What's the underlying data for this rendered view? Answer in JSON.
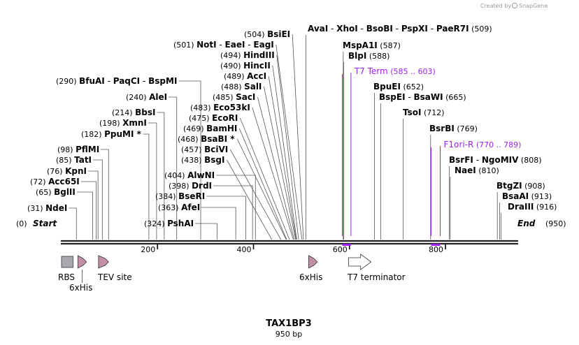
{
  "map": {
    "name": "TAX1BP3",
    "length_label": "950 bp",
    "length": 950,
    "credit": "Created by",
    "brand": "SnapGene"
  },
  "ticks": [
    {
      "pos": 200,
      "label": "200"
    },
    {
      "pos": 400,
      "label": "400"
    },
    {
      "pos": 600,
      "label": "600"
    },
    {
      "pos": 800,
      "label": "800"
    }
  ],
  "ends": [
    {
      "id": "start",
      "num": "(0)",
      "name": "Start"
    },
    {
      "id": "end",
      "name": "End",
      "num": "(950)"
    }
  ],
  "enzymes": [
    {
      "id": "ndei",
      "pos": 31,
      "num": "(31)",
      "names": [
        "NdeI"
      ]
    },
    {
      "id": "bglii",
      "pos": 65,
      "num": "(65)",
      "names": [
        "BglII"
      ]
    },
    {
      "id": "acc65i",
      "pos": 72,
      "num": "(72)",
      "names": [
        "Acc65I"
      ]
    },
    {
      "id": "kpni",
      "pos": 76,
      "num": "(76)",
      "names": [
        "KpnI"
      ]
    },
    {
      "id": "tati",
      "pos": 85,
      "num": "(85)",
      "names": [
        "TatI"
      ]
    },
    {
      "id": "pflmi",
      "pos": 98,
      "num": "(98)",
      "names": [
        "PflMI"
      ]
    },
    {
      "id": "ppumi",
      "pos": 182,
      "num": "(182)",
      "names": [
        "PpuMI *"
      ]
    },
    {
      "id": "xmni",
      "pos": 198,
      "num": "(198)",
      "names": [
        "XmnI"
      ]
    },
    {
      "id": "bbsi",
      "pos": 214,
      "num": "(214)",
      "names": [
        "BbsI"
      ]
    },
    {
      "id": "alei",
      "pos": 240,
      "num": "(240)",
      "names": [
        "AleI"
      ]
    },
    {
      "id": "bfuai",
      "pos": 290,
      "num": "(290)",
      "names": [
        "BfuAI",
        "PaqCI",
        "BspMI"
      ]
    },
    {
      "id": "pshai",
      "pos": 324,
      "num": "(324)",
      "names": [
        "PshAI"
      ]
    },
    {
      "id": "afei",
      "pos": 363,
      "num": "(363)",
      "names": [
        "AfeI"
      ]
    },
    {
      "id": "bseri",
      "pos": 384,
      "num": "(384)",
      "names": [
        "BseRI"
      ]
    },
    {
      "id": "drdi",
      "pos": 398,
      "num": "(398)",
      "names": [
        "DrdI"
      ]
    },
    {
      "id": "alwni",
      "pos": 404,
      "num": "(404)",
      "names": [
        "AlwNI"
      ]
    },
    {
      "id": "bsgi",
      "pos": 438,
      "num": "(438)",
      "names": [
        "BsgI"
      ]
    },
    {
      "id": "bcivi",
      "pos": 457,
      "num": "(457)",
      "names": [
        "BciVI"
      ]
    },
    {
      "id": "bsabi",
      "pos": 468,
      "num": "(468)",
      "names": [
        "BsaBI *"
      ]
    },
    {
      "id": "bamhi",
      "pos": 469,
      "num": "(469)",
      "names": [
        "BamHI"
      ]
    },
    {
      "id": "ecori",
      "pos": 475,
      "num": "(475)",
      "names": [
        "EcoRI"
      ]
    },
    {
      "id": "eco53ki",
      "pos": 483,
      "num": "(483)",
      "names": [
        "Eco53kI"
      ]
    },
    {
      "id": "saci",
      "pos": 485,
      "num": "(485)",
      "names": [
        "SacI"
      ]
    },
    {
      "id": "sali",
      "pos": 488,
      "num": "(488)",
      "names": [
        "SalI"
      ]
    },
    {
      "id": "acci",
      "pos": 489,
      "num": "(489)",
      "names": [
        "AccI"
      ]
    },
    {
      "id": "hincii",
      "pos": 490,
      "num": "(490)",
      "names": [
        "HincII"
      ]
    },
    {
      "id": "hindiii",
      "pos": 494,
      "num": "(494)",
      "names": [
        "HindIII"
      ]
    },
    {
      "id": "noti",
      "pos": 501,
      "num": "(501)",
      "names": [
        "NotI",
        "EaeI",
        "EagI"
      ]
    },
    {
      "id": "bsiei",
      "pos": 504,
      "num": "(504)",
      "names": [
        "BsiEI"
      ]
    },
    {
      "id": "avai",
      "pos": 509,
      "num": "(509)",
      "names": [
        "AvaI",
        "XhoI",
        "BsoBI",
        "PspXI",
        "PaeR7I"
      ]
    },
    {
      "id": "mspa1i",
      "pos": 587,
      "num": "(587)",
      "names": [
        "MspA1I"
      ]
    },
    {
      "id": "blpi",
      "pos": 588,
      "num": "(588)",
      "names": [
        "BlpI"
      ]
    },
    {
      "id": "bpuei",
      "pos": 652,
      "num": "(652)",
      "names": [
        "BpuEI"
      ]
    },
    {
      "id": "bspei",
      "pos": 665,
      "num": "(665)",
      "names": [
        "BspEI",
        "BsaWI"
      ]
    },
    {
      "id": "tsoi",
      "pos": 712,
      "num": "(712)",
      "names": [
        "TsoI"
      ]
    },
    {
      "id": "bsrbi",
      "pos": 769,
      "num": "(769)",
      "names": [
        "BsrBI"
      ]
    },
    {
      "id": "bsrfi",
      "pos": 808,
      "num": "(808)",
      "names": [
        "BsrFI",
        "NgoMIV"
      ]
    },
    {
      "id": "naei",
      "pos": 810,
      "num": "(810)",
      "names": [
        "NaeI"
      ]
    },
    {
      "id": "btgzi",
      "pos": 908,
      "num": "(908)",
      "names": [
        "BtgZI"
      ]
    },
    {
      "id": "bsaai",
      "pos": 913,
      "num": "(913)",
      "names": [
        "BsaAI"
      ]
    },
    {
      "id": "draiii",
      "pos": 916,
      "num": "(916)",
      "names": [
        "DraIII"
      ]
    }
  ],
  "primers": [
    {
      "id": "t7-term",
      "start": 585,
      "end": 603,
      "name": "T7 Term",
      "range": "(585 .. 603)"
    },
    {
      "id": "f1ori-r",
      "start": 770,
      "end": 789,
      "name": "F1ori-R",
      "range": "(770 .. 789)"
    }
  ],
  "features": [
    {
      "id": "rbs",
      "type": "box",
      "start": 0,
      "end": 24,
      "label": "RBS",
      "color": "#a7a9ac"
    },
    {
      "id": "6xhis-1",
      "type": "arrow",
      "start": 34,
      "end": 52,
      "label": "6xHis",
      "color": "#c48fa6"
    },
    {
      "id": "tev-site",
      "type": "arrow",
      "start": 77,
      "end": 98,
      "label": "TEV site",
      "color": "#c48fa6"
    },
    {
      "id": "6xhis-2",
      "type": "arrow",
      "start": 515,
      "end": 533,
      "label": "6xHis",
      "color": "#c48fa6"
    },
    {
      "id": "t7-terminator",
      "type": "arrow",
      "start": 598,
      "end": 645,
      "label": "T7 terminator",
      "color": "#ffffff"
    }
  ],
  "colors": {
    "primer": "#a020f0",
    "leader": "#555555",
    "backbone": "#222222"
  }
}
